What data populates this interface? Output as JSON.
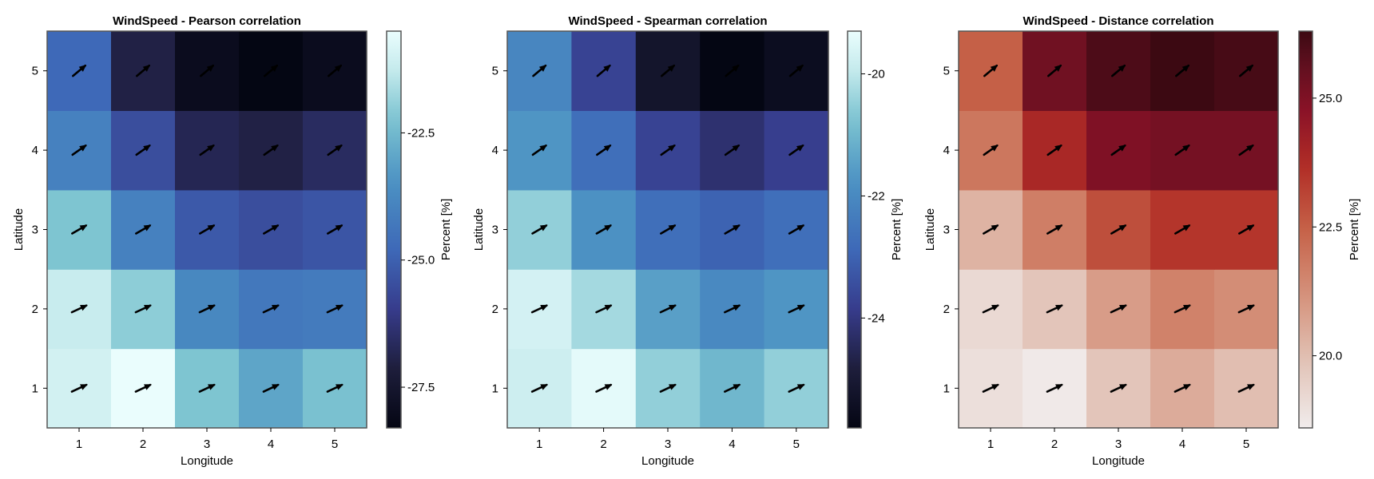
{
  "chart_data": [
    {
      "type": "heatmap",
      "title": "WindSpeed - Pearson correlation",
      "xlabel": "Longitude",
      "ylabel": "Latitude",
      "colorbar_label": "Percent [%]",
      "x": [
        1,
        2,
        3,
        4,
        5
      ],
      "y": [
        1,
        2,
        3,
        4,
        5
      ],
      "colormap": "ice",
      "clim": [
        -28.3,
        -20.5
      ],
      "colorbar_ticks": [
        -27.5,
        -25.0,
        -22.5
      ],
      "colorbar_tick_labels": [
        "-27.5",
        "-25.0",
        "-22.5"
      ],
      "grid": false,
      "values": [
        [
          -21.0,
          -20.5,
          -22.2,
          -23.0,
          -22.3
        ],
        [
          -21.2,
          -22.0,
          -23.8,
          -24.3,
          -24.2
        ],
        [
          -22.2,
          -24.0,
          -25.2,
          -25.5,
          -25.3
        ],
        [
          -24.0,
          -25.5,
          -26.8,
          -27.0,
          -26.6
        ],
        [
          -24.8,
          -27.0,
          -28.0,
          -28.3,
          -28.0
        ]
      ],
      "arrow_direction_deg": [
        [
          25,
          25,
          25,
          25,
          25
        ],
        [
          25,
          25,
          25,
          25,
          25
        ],
        [
          30,
          30,
          30,
          30,
          30
        ],
        [
          35,
          35,
          35,
          35,
          35
        ],
        [
          40,
          40,
          40,
          40,
          40
        ]
      ]
    },
    {
      "type": "heatmap",
      "title": "WindSpeed - Spearman correlation",
      "xlabel": "Longitude",
      "ylabel": "Latitude",
      "colorbar_label": "Percent [%]",
      "x": [
        1,
        2,
        3,
        4,
        5
      ],
      "y": [
        1,
        2,
        3,
        4,
        5
      ],
      "colormap": "ice",
      "clim": [
        -25.8,
        -19.3
      ],
      "colorbar_ticks": [
        -24,
        -22,
        -20
      ],
      "colorbar_tick_labels": [
        "-24",
        "-22",
        "-20"
      ],
      "grid": false,
      "values": [
        [
          -19.8,
          -19.4,
          -20.5,
          -21.0,
          -20.5
        ],
        [
          -19.7,
          -20.3,
          -21.5,
          -22.0,
          -21.7
        ],
        [
          -20.5,
          -21.8,
          -22.7,
          -23.0,
          -22.7
        ],
        [
          -21.7,
          -22.7,
          -23.7,
          -24.2,
          -23.8
        ],
        [
          -22.1,
          -23.7,
          -25.2,
          -25.8,
          -25.5
        ]
      ],
      "arrow_direction_deg": [
        [
          25,
          25,
          25,
          25,
          25
        ],
        [
          25,
          25,
          25,
          25,
          25
        ],
        [
          30,
          30,
          30,
          30,
          30
        ],
        [
          35,
          35,
          35,
          35,
          35
        ],
        [
          40,
          40,
          40,
          40,
          40
        ]
      ]
    },
    {
      "type": "heatmap",
      "title": "WindSpeed - Distance correlation",
      "xlabel": "Longitude",
      "ylabel": "Latitude",
      "colorbar_label": "Percent [%]",
      "x": [
        1,
        2,
        3,
        4,
        5
      ],
      "y": [
        1,
        2,
        3,
        4,
        5
      ],
      "colormap": "amp",
      "clim": [
        18.6,
        26.3
      ],
      "colorbar_ticks": [
        20.0,
        22.5,
        25.0
      ],
      "colorbar_tick_labels": [
        "20.0",
        "22.5",
        "25.0"
      ],
      "grid": false,
      "values": [
        [
          19.0,
          18.7,
          19.8,
          20.5,
          20.0
        ],
        [
          19.2,
          19.8,
          20.9,
          21.6,
          21.3
        ],
        [
          20.3,
          21.7,
          22.9,
          23.5,
          23.5
        ],
        [
          21.9,
          23.9,
          25.0,
          25.2,
          25.2
        ],
        [
          22.5,
          25.3,
          26.0,
          26.3,
          26.1
        ]
      ],
      "arrow_direction_deg": [
        [
          25,
          25,
          25,
          25,
          25
        ],
        [
          25,
          25,
          25,
          25,
          25
        ],
        [
          30,
          30,
          30,
          30,
          30
        ],
        [
          35,
          35,
          35,
          35,
          35
        ],
        [
          40,
          40,
          40,
          40,
          40
        ]
      ]
    }
  ]
}
